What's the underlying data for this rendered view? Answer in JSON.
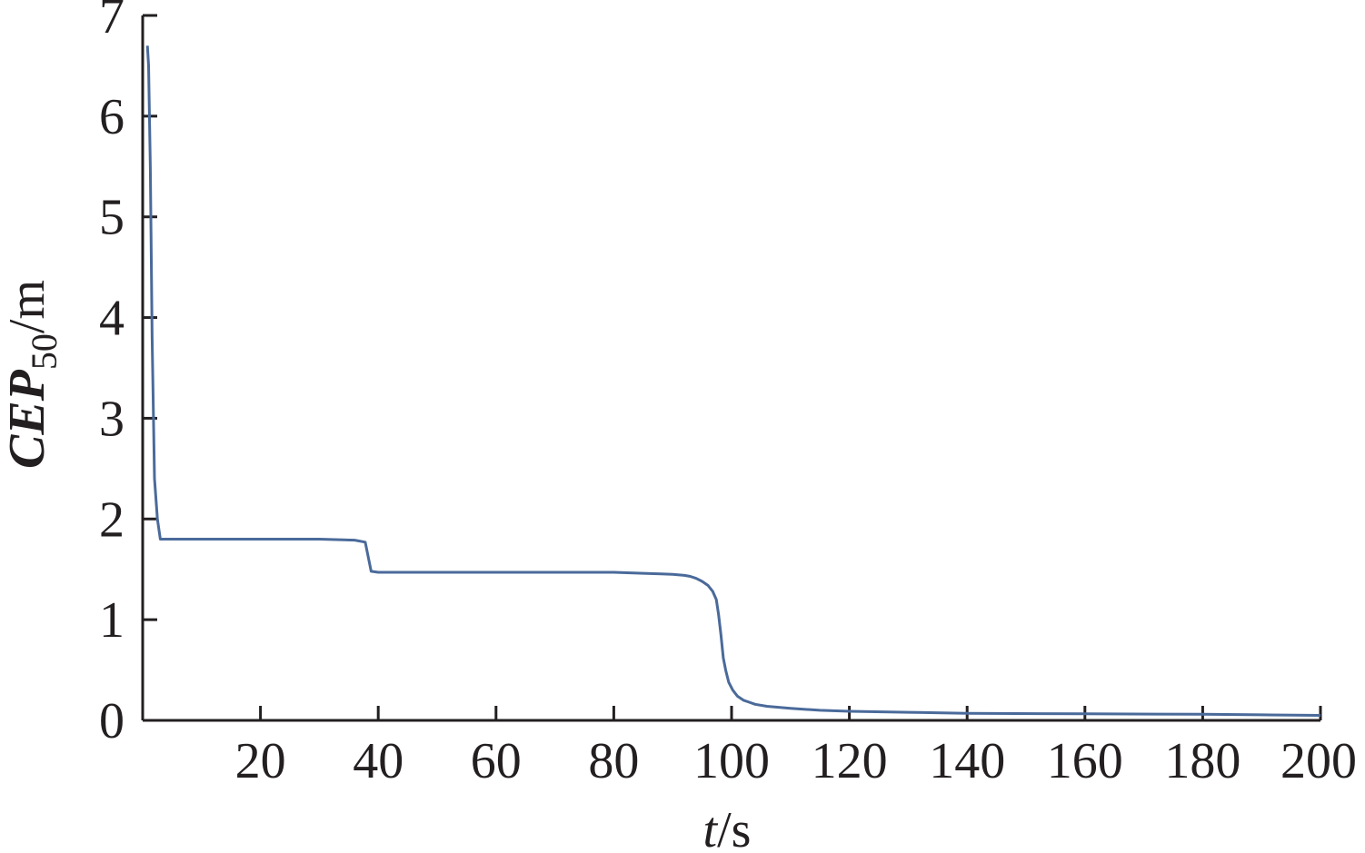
{
  "chart_data": {
    "type": "line",
    "xlabel": {
      "var": "t",
      "unit": "/s"
    },
    "ylabel": {
      "var": "CEP",
      "sub": "50",
      "unit": "/m"
    },
    "xlim": [
      0,
      200
    ],
    "ylim": [
      0,
      7
    ],
    "x_ticks": [
      20,
      40,
      60,
      80,
      100,
      120,
      140,
      160,
      180,
      200
    ],
    "y_ticks": [
      0,
      1,
      2,
      3,
      4,
      5,
      6,
      7
    ],
    "grid": false,
    "legend": "none",
    "series": [
      {
        "color": "#4a6a9a",
        "x": [
          0.8,
          1.0,
          1.3,
          1.6,
          2.0,
          2.5,
          3.0,
          10,
          20,
          30,
          36,
          37.8,
          38.8,
          40,
          50,
          60,
          70,
          80,
          85,
          88,
          90,
          92,
          93,
          94,
          95,
          96,
          96.8,
          97.4,
          97.8,
          98.2,
          98.6,
          99.0,
          99.5,
          100.2,
          101,
          102,
          103,
          104,
          106,
          108,
          110,
          115,
          120,
          130,
          140,
          160,
          180,
          190,
          200
        ],
        "y": [
          6.7,
          6.5,
          5.5,
          3.8,
          2.4,
          2.0,
          1.8,
          1.8,
          1.8,
          1.8,
          1.79,
          1.77,
          1.48,
          1.47,
          1.47,
          1.47,
          1.47,
          1.47,
          1.46,
          1.455,
          1.45,
          1.44,
          1.43,
          1.41,
          1.38,
          1.34,
          1.28,
          1.2,
          1.05,
          0.85,
          0.62,
          0.5,
          0.38,
          0.3,
          0.24,
          0.2,
          0.18,
          0.16,
          0.14,
          0.13,
          0.12,
          0.1,
          0.09,
          0.08,
          0.07,
          0.065,
          0.06,
          0.055,
          0.05
        ]
      }
    ]
  }
}
